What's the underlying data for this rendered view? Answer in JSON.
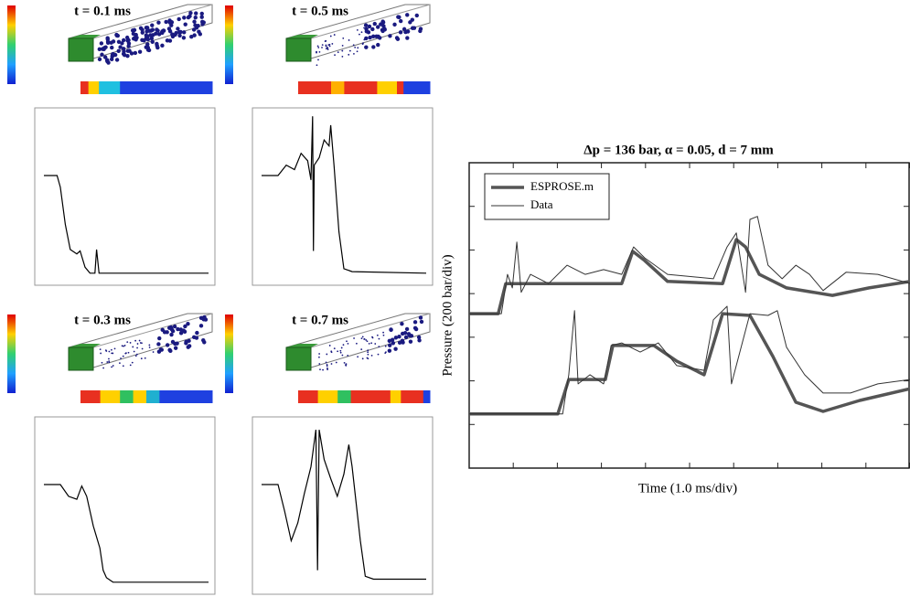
{
  "chart_data": [
    {
      "type": "line",
      "title": "t = 0.1 ms",
      "xlim": [
        0,
        1
      ],
      "ylim": [
        0,
        1.1
      ],
      "series": [
        {
          "color": "#000000",
          "x": [
            0,
            0.08,
            0.1,
            0.13,
            0.16,
            0.2,
            0.22,
            0.25,
            0.28,
            0.31,
            0.32,
            0.335,
            1
          ],
          "values": [
            0.68,
            0.68,
            0.6,
            0.35,
            0.18,
            0.15,
            0.17,
            0.06,
            0.02,
            0.02,
            0.18,
            0.02,
            0.02
          ]
        }
      ]
    },
    {
      "type": "line",
      "title": "t = 0.5 ms",
      "xlim": [
        0,
        1
      ],
      "ylim": [
        0,
        1.1
      ],
      "series": [
        {
          "color": "#000000",
          "x": [
            0,
            0.1,
            0.15,
            0.2,
            0.24,
            0.28,
            0.3,
            0.31,
            0.315,
            0.32,
            0.35,
            0.38,
            0.41,
            0.42,
            0.44,
            0.47,
            0.5,
            0.55,
            1
          ],
          "values": [
            0.68,
            0.68,
            0.75,
            0.72,
            0.83,
            0.78,
            0.65,
            1.08,
            0.17,
            0.75,
            0.8,
            0.92,
            0.88,
            1.02,
            0.75,
            0.3,
            0.05,
            0.03,
            0.02
          ]
        }
      ]
    },
    {
      "type": "line",
      "title": "t = 0.3 ms",
      "xlim": [
        0,
        1
      ],
      "ylim": [
        0,
        1.1
      ],
      "series": [
        {
          "color": "#000000",
          "x": [
            0,
            0.1,
            0.15,
            0.2,
            0.23,
            0.26,
            0.3,
            0.34,
            0.36,
            0.38,
            0.42,
            1
          ],
          "values": [
            0.68,
            0.68,
            0.6,
            0.58,
            0.67,
            0.6,
            0.4,
            0.25,
            0.1,
            0.05,
            0.02,
            0.02
          ]
        }
      ]
    },
    {
      "type": "line",
      "title": "t = 0.7 ms",
      "xlim": [
        0,
        1
      ],
      "ylim": [
        0,
        1.1
      ],
      "series": [
        {
          "color": "#000000",
          "x": [
            0,
            0.1,
            0.14,
            0.18,
            0.22,
            0.26,
            0.3,
            0.33,
            0.34,
            0.35,
            0.38,
            0.42,
            0.46,
            0.5,
            0.53,
            0.55,
            0.6,
            0.63,
            0.68,
            1
          ],
          "values": [
            0.68,
            0.68,
            0.5,
            0.3,
            0.42,
            0.62,
            0.8,
            1.05,
            0.1,
            1.05,
            0.85,
            0.72,
            0.6,
            0.75,
            0.95,
            0.8,
            0.3,
            0.06,
            0.04,
            0.04
          ]
        }
      ]
    },
    {
      "type": "line",
      "title": "Δp = 136 bar, α = 0.05, d = 7 mm",
      "xlabel": "Time (1.0 ms/div)",
      "ylabel": "Pressure (200 bar/div)",
      "xlim": [
        0,
        10
      ],
      "ylim": [
        0,
        7
      ],
      "xticks": [
        0,
        1,
        2,
        3,
        4,
        5,
        6,
        7,
        8,
        9,
        10
      ],
      "yticks": [
        0,
        1,
        2,
        3,
        4,
        5,
        6,
        7
      ],
      "series": [
        {
          "name": "ESPROSE.m",
          "color": "#555555",
          "width": 3.5,
          "traces": [
            {
              "x": [
                0,
                0.66,
                0.83,
                3.46,
                3.71,
                3.98,
                4.5,
                5.75,
                6.06,
                6.27,
                6.58,
                7.2,
                8.24,
                9.07,
                10
              ],
              "values": [
                3.54,
                3.54,
                4.23,
                4.23,
                4.97,
                4.76,
                4.28,
                4.23,
                5.24,
                5.07,
                4.44,
                4.13,
                3.96,
                4.13,
                4.28
              ]
            },
            {
              "x": [
                0,
                2.01,
                2.26,
                3.09,
                3.26,
                4.19,
                4.71,
                5.33,
                5.75,
                6.37,
                6.89,
                7.41,
                8.03,
                8.86,
                10
              ],
              "values": [
                1.24,
                1.24,
                2.03,
                2.03,
                2.81,
                2.81,
                2.45,
                2.14,
                3.54,
                3.5,
                2.56,
                1.51,
                1.3,
                1.55,
                1.82
              ]
            }
          ]
        },
        {
          "name": "Data",
          "color": "#333333",
          "width": 1,
          "traces": [
            {
              "x": [
                0,
                0.73,
                0.87,
                0.98,
                1.08,
                1.18,
                1.39,
                1.8,
                2.22,
                2.63,
                3.05,
                3.46,
                3.73,
                3.98,
                4.5,
                5.54,
                5.85,
                6.06,
                6.27,
                6.37,
                6.54,
                6.78,
                7.1,
                7.41,
                7.72,
                8.03,
                8.55,
                9.27,
                10
              ],
              "values": [
                3.54,
                3.54,
                4.44,
                4.13,
                5.18,
                4.03,
                4.44,
                4.23,
                4.65,
                4.44,
                4.55,
                4.44,
                5.07,
                4.82,
                4.44,
                4.34,
                5.07,
                5.39,
                4.03,
                5.7,
                5.77,
                4.65,
                4.34,
                4.65,
                4.44,
                4.07,
                4.49,
                4.44,
                4.23
              ]
            },
            {
              "x": [
                0,
                2.12,
                2.26,
                2.39,
                2.47,
                2.74,
                3.05,
                3.22,
                3.46,
                3.88,
                4.29,
                4.71,
                5.33,
                5.54,
                5.85,
                5.95,
                6.37,
                6.78,
                6.99,
                7.2,
                7.61,
                8.03,
                8.65,
                9.27,
                10
              ],
              "values": [
                1.24,
                1.24,
                2.14,
                3.61,
                1.93,
                2.14,
                1.93,
                2.81,
                2.87,
                2.66,
                2.87,
                2.35,
                2.24,
                3.4,
                3.71,
                1.93,
                3.54,
                3.5,
                3.61,
                2.77,
                2.14,
                1.72,
                1.72,
                1.93,
                2.03
              ]
            }
          ]
        }
      ]
    }
  ]
}
